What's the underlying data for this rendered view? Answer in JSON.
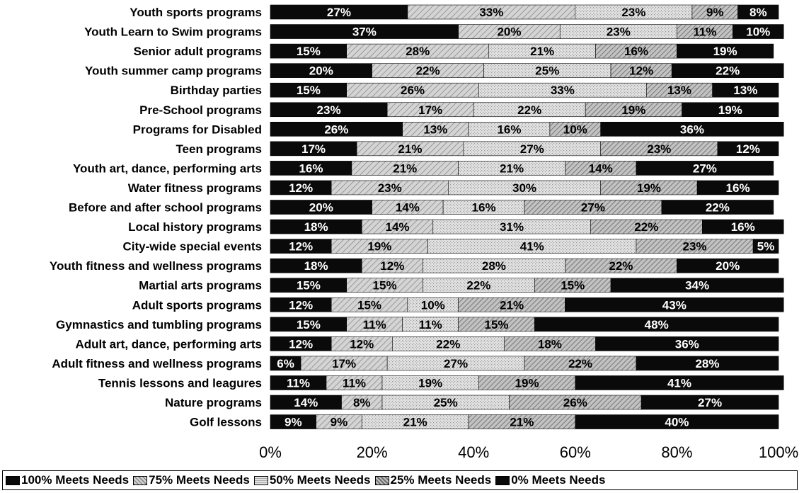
{
  "chart_data": {
    "type": "bar",
    "orientation": "horizontal",
    "stacked": true,
    "categories": [
      "Youth sports programs",
      "Youth Learn to Swim programs",
      "Senior adult programs",
      "Youth summer camp programs",
      "Birthday parties",
      "Pre-School programs",
      "Programs for Disabled",
      "Teen programs",
      "Youth art, dance, performing arts",
      "Water fitness programs",
      "Before and after school programs",
      "Local history programs",
      "City-wide special events",
      "Youth fitness and wellness programs",
      "Martial arts programs",
      "Adult sports programs",
      "Gymnastics and tumbling programs",
      "Adult art, dance, performing arts",
      "Adult fitness and wellness programs",
      "Tennis lessons and leagures",
      "Nature programs",
      "Golf lessons"
    ],
    "series": [
      {
        "name": "100% Meets Needs",
        "color": "#0a0a0a",
        "values": [
          27,
          37,
          15,
          20,
          15,
          23,
          26,
          17,
          16,
          12,
          20,
          18,
          12,
          18,
          15,
          12,
          15,
          12,
          6,
          11,
          14,
          9
        ]
      },
      {
        "name": "75% Meets Needs",
        "color": "#c8c8c8",
        "values": [
          33,
          20,
          28,
          22,
          26,
          17,
          13,
          21,
          21,
          23,
          14,
          14,
          19,
          12,
          15,
          15,
          11,
          12,
          17,
          11,
          8,
          9
        ]
      },
      {
        "name": "50% Meets Needs",
        "color": "#dcdcdc",
        "values": [
          23,
          23,
          21,
          25,
          33,
          22,
          16,
          27,
          21,
          30,
          16,
          31,
          41,
          28,
          22,
          10,
          11,
          22,
          27,
          19,
          25,
          21
        ]
      },
      {
        "name": "25% Meets Needs",
        "color": "#bdbdbd",
        "values": [
          9,
          11,
          16,
          12,
          13,
          19,
          10,
          23,
          14,
          19,
          27,
          22,
          23,
          22,
          15,
          21,
          15,
          18,
          22,
          19,
          26,
          21
        ]
      },
      {
        "name": "0% Meets Needs",
        "color": "#0a0a0a",
        "values": [
          8,
          10,
          19,
          22,
          13,
          19,
          36,
          12,
          27,
          16,
          22,
          16,
          5,
          20,
          34,
          43,
          48,
          36,
          28,
          41,
          27,
          40
        ]
      }
    ],
    "xlim": [
      0,
      100
    ],
    "xticks": [
      "0%",
      "20%",
      "40%",
      "60%",
      "80%",
      "100%"
    ],
    "title": "",
    "xlabel": "",
    "ylabel": "",
    "legend_position": "bottom"
  }
}
